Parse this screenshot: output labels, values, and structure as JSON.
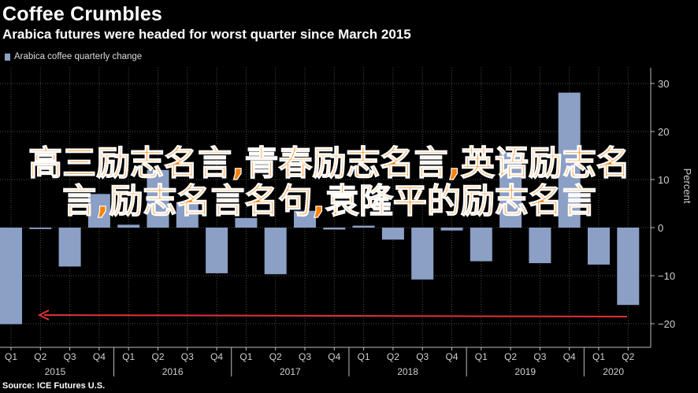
{
  "title": "Coffee Crumbles",
  "subtitle": "Arabica futures were headed for worst quarter since March 2015",
  "source": "Source: ICE Futures U.S.",
  "overlay_text": "高三励志名言,青春励志名言,英语励志名言,励志名言名句,袁隆平的励志名言",
  "colors": {
    "bar": "#8c9fc5",
    "arrow": "#e0313a",
    "background": "#000000",
    "grid": "#4a4a4a",
    "overlay": "#ff7f00"
  },
  "chart_data": {
    "type": "bar",
    "legend": "Arabica coffee quarterly change",
    "legend_position": "top-left",
    "ylabel": "Percent",
    "ylim": [
      -25,
      32
    ],
    "yticks": [
      -20,
      -10,
      0,
      10,
      20,
      30
    ],
    "grid": true,
    "categories": [
      "Q1",
      "Q2",
      "Q3",
      "Q4",
      "Q1",
      "Q2",
      "Q3",
      "Q4",
      "Q1",
      "Q2",
      "Q3",
      "Q4",
      "Q1",
      "Q2",
      "Q3",
      "Q4",
      "Q1",
      "Q2",
      "Q3",
      "Q4",
      "Q1",
      "Q2"
    ],
    "years": [
      {
        "label": "2015",
        "start": 0,
        "end": 3
      },
      {
        "label": "2016",
        "start": 4,
        "end": 7
      },
      {
        "label": "2017",
        "start": 8,
        "end": 11
      },
      {
        "label": "2018",
        "start": 12,
        "end": 15
      },
      {
        "label": "2019",
        "start": 16,
        "end": 19
      },
      {
        "label": "2020",
        "start": 20,
        "end": 21
      }
    ],
    "values": [
      -20.1,
      -0.3,
      -8.1,
      7.0,
      0.6,
      12.0,
      5.3,
      -9.5,
      2.0,
      -9.7,
      3.5,
      -0.4,
      0.4,
      -2.5,
      -10.8,
      -0.6,
      -7.0,
      15.7,
      -7.4,
      28.1,
      -7.7,
      -16.1
    ]
  }
}
